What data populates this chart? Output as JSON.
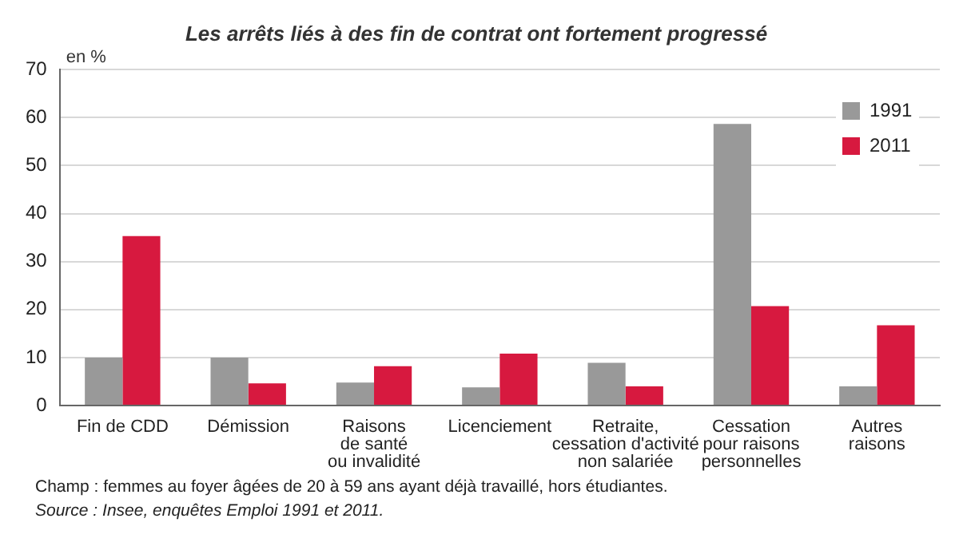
{
  "chart_data": {
    "type": "bar",
    "title": "Les arrêts liés à des fin de contrat ont fortement progressé",
    "ylabel": "en %",
    "categories": [
      "Fin de CDD",
      "Démission",
      "Raisons\nde santé\nou invalidité",
      "Licenciement",
      "Retraite,\ncessation d'activité\nnon salariée",
      "Cessation\npour raisons\npersonnelles",
      "Autres\nraisons"
    ],
    "series": [
      {
        "name": "1991",
        "color": "#999999",
        "values": [
          10,
          10,
          4.8,
          3.8,
          8.9,
          58.7,
          4
        ]
      },
      {
        "name": "2011",
        "color": "#d7193f",
        "values": [
          35.3,
          4.6,
          8.2,
          10.8,
          4,
          20.7,
          16.7
        ]
      }
    ],
    "ylim": [
      0,
      70
    ],
    "yticks": [
      0,
      10,
      20,
      30,
      40,
      50,
      60,
      70
    ],
    "grid": "y",
    "legend": "top right",
    "annotations": [
      "Champ : femmes au foyer âgées de 20 à 59 ans ayant déjà travaillé, hors étudiantes.",
      "Source : Insee, enquêtes Emploi 1991 et 2011."
    ]
  }
}
